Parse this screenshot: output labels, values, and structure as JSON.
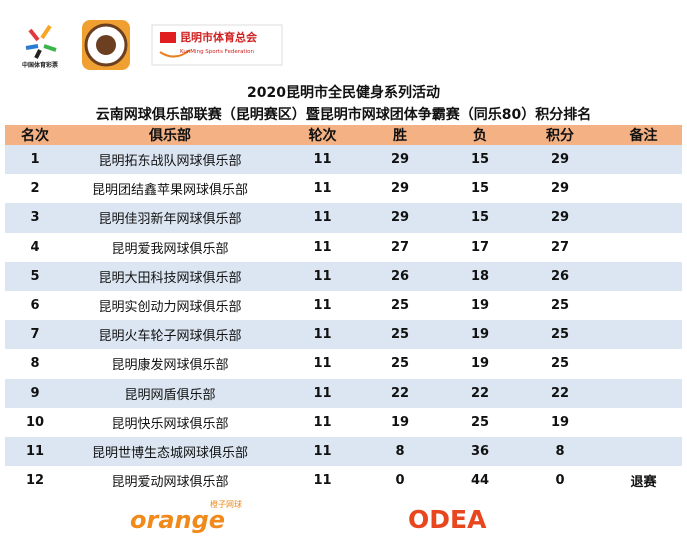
{
  "logos": {
    "lottery": "中国体育彩票",
    "federation_cn": "昆明市体育总会",
    "federation_en": "KunMing Sports Federation"
  },
  "header": {
    "title_line1": "2020昆明市全民健身系列活动",
    "title_line2": "云南网球俱乐部联赛（昆明赛区）暨昆明市网球团体争霸赛（同乐80）积分排名"
  },
  "table": {
    "header": [
      "名次",
      "俱乐部",
      "轮次",
      "胜",
      "负",
      "积分",
      "备注"
    ],
    "rows": [
      [
        "1",
        "昆明拓东战队网球俱乐部",
        "11",
        "29",
        "15",
        "29"
      ],
      [
        "2",
        "昆明团结鑫苹果网球俱乐部",
        "11",
        "29",
        "15",
        "29"
      ],
      [
        "3",
        "昆明佳羽新年网球俱乐部",
        "11",
        "29",
        "15",
        "29"
      ],
      [
        "4",
        "昆明爱我网球俱乐部",
        "11",
        "27",
        "17",
        "27"
      ],
      [
        "5",
        "昆明大田科技网球俱乐部",
        "11",
        "26",
        "18",
        "26"
      ],
      [
        "6",
        "昆明实创动力网球俱乐部",
        "11",
        "25",
        "19",
        "25"
      ],
      [
        "7",
        "昆明火车轮子网球俱乐部",
        "11",
        "25",
        "19",
        "25"
      ],
      [
        "8",
        "昆明康发网球俱乐部",
        "11",
        "25",
        "19",
        "25"
      ],
      [
        "9",
        "昆明网盾俱乐部",
        "11",
        "22",
        "22",
        "22"
      ],
      [
        "10",
        "昆明快乐网球俱乐部",
        "11",
        "19",
        "25",
        "19"
      ],
      [
        "11",
        "昆明世博生态城网球俱乐部",
        "11",
        "8",
        "36",
        "8"
      ],
      [
        "12",
        "昆明爱动网球俱乐部",
        "11",
        "0",
        "44",
        "0",
        "退赛"
      ]
    ]
  },
  "footer": {
    "sponsor1": "orange",
    "sponsor1_cn": "橙子网球",
    "sponsor2": "ODEA"
  }
}
